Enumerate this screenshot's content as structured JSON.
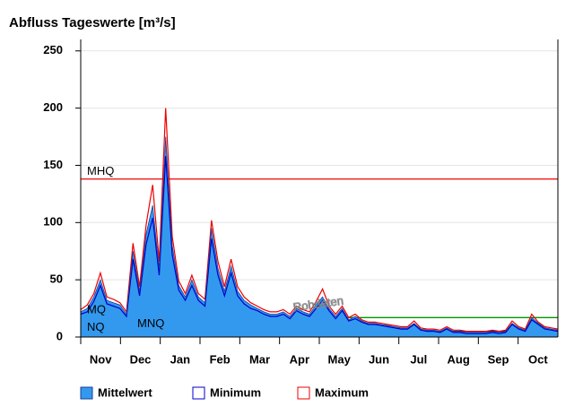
{
  "chart_data": {
    "type": "area",
    "title": "Abfluss Tageswerte [m³/s]",
    "categories": [
      "Nov",
      "Dec",
      "Jan",
      "Feb",
      "Mar",
      "Apr",
      "May",
      "Jun",
      "Jul",
      "Aug",
      "Sep",
      "Oct"
    ],
    "xlim": [
      0,
      365
    ],
    "x": [
      0,
      5,
      10,
      15,
      20,
      25,
      30,
      35,
      40,
      45,
      50,
      55,
      60,
      65,
      70,
      75,
      80,
      85,
      90,
      95,
      100,
      105,
      110,
      115,
      120,
      125,
      130,
      135,
      140,
      145,
      150,
      155,
      160,
      165,
      170,
      175,
      180,
      185,
      190,
      195,
      200,
      205,
      210,
      215,
      220,
      225,
      230,
      235,
      240,
      245,
      250,
      255,
      260,
      265,
      270,
      275,
      280,
      285,
      290,
      295,
      300,
      305,
      310,
      315,
      320,
      325,
      330,
      335,
      340,
      345,
      350,
      355,
      360,
      365
    ],
    "ylim": [
      0,
      260
    ],
    "yticks": [
      0,
      50,
      100,
      150,
      200,
      250
    ],
    "grid": true,
    "series": [
      {
        "name": "Mittelwert",
        "color": "#3399ee",
        "values": [
          22,
          25,
          35,
          50,
          32,
          30,
          28,
          20,
          75,
          40,
          90,
          115,
          60,
          175,
          80,
          45,
          35,
          50,
          35,
          30,
          95,
          60,
          40,
          62,
          40,
          32,
          28,
          25,
          22,
          20,
          20,
          22,
          18,
          25,
          22,
          20,
          28,
          35,
          25,
          18,
          25,
          15,
          18,
          14,
          12,
          12,
          11,
          10,
          9,
          8,
          8,
          12,
          7,
          6,
          6,
          5,
          8,
          5,
          5,
          4,
          4,
          4,
          4,
          5,
          4,
          5,
          12,
          8,
          6,
          17,
          12,
          8,
          7,
          6
        ]
      },
      {
        "name": "Minimum",
        "color": "#0000cc",
        "values": [
          20,
          22,
          31,
          45,
          29,
          27,
          25,
          18,
          68,
          36,
          81,
          104,
          54,
          158,
          72,
          41,
          32,
          45,
          32,
          27,
          86,
          54,
          36,
          56,
          36,
          29,
          25,
          23,
          20,
          18,
          18,
          20,
          16,
          23,
          20,
          18,
          25,
          32,
          23,
          16,
          23,
          14,
          16,
          13,
          11,
          11,
          10,
          9,
          8,
          7,
          7,
          11,
          6,
          5,
          5,
          4,
          7,
          4,
          4,
          3,
          3,
          3,
          3,
          4,
          3,
          4,
          11,
          7,
          5,
          15,
          11,
          7,
          6,
          5
        ]
      },
      {
        "name": "Maximum",
        "color": "#ee0000",
        "values": [
          24,
          28,
          38,
          56,
          35,
          33,
          30,
          22,
          82,
          44,
          98,
          133,
          66,
          200,
          88,
          49,
          38,
          54,
          38,
          33,
          102,
          66,
          44,
          68,
          44,
          35,
          30,
          27,
          24,
          22,
          22,
          24,
          20,
          27,
          24,
          22,
          31,
          42,
          27,
          20,
          27,
          17,
          20,
          15,
          13,
          13,
          12,
          11,
          10,
          9,
          9,
          14,
          8,
          7,
          7,
          6,
          9,
          6,
          6,
          5,
          5,
          5,
          5,
          6,
          5,
          6,
          14,
          9,
          7,
          20,
          13,
          9,
          8,
          7
        ]
      }
    ],
    "reference_lines": [
      {
        "name": "MHQ",
        "value": 138,
        "color": "#ee0000"
      },
      {
        "name": "MQ",
        "value": 17,
        "color": "#009900"
      },
      {
        "name": "MNQ",
        "value": 5,
        "color": "#000066"
      },
      {
        "name": "NQ",
        "value": 2,
        "color": "#000066"
      }
    ],
    "watermark": "Rohdaten"
  }
}
